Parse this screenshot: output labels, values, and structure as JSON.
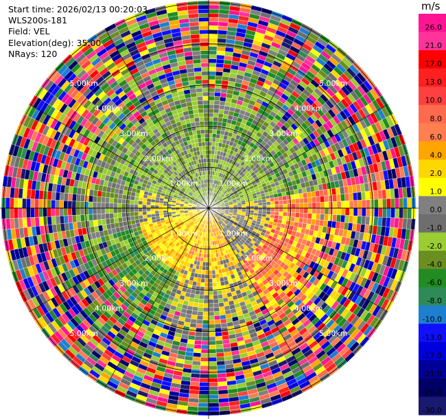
{
  "header": {
    "start_time": "Start time: 2026/02/13 00:20:03",
    "instrument": "WLS200s-181",
    "field": "Field: VEL",
    "elevation": "Elevation(deg): 35.00",
    "nrays": "NRays: 120"
  },
  "chart_data": {
    "type": "heatmap",
    "projection": "polar-ppi",
    "field": "VEL",
    "units": "m/s",
    "nrays": 120,
    "range_rings_km": [
      1.0,
      2.0,
      3.0,
      4.0,
      5.0
    ],
    "ring_labels": [
      "1.00km",
      "2.00km",
      "3.00km",
      "4.00km",
      "5.00km"
    ],
    "colorbar": {
      "unit_label": "m/s",
      "tick_labels": [
        "26.0",
        "21.0",
        "17.0",
        "13.0",
        "10.0",
        "8.0",
        "6.0",
        "4.0",
        "2.0",
        "1.0",
        "0.0",
        "-1.0",
        "-2.0",
        "-4.0",
        "-6.0",
        "-8.0",
        "-10.0",
        "-13.0",
        "-17.0",
        "-21.0",
        "-26.0",
        "-30.0"
      ],
      "colors": [
        "#ff1493",
        "#ff3399",
        "#ff0000",
        "#ff2020",
        "#ff4040",
        "#ff6a4f",
        "#ff7f50",
        "#ffa500",
        "#ffd700",
        "#ffff00",
        "#808080",
        "#6e6e6e",
        "#9acd32",
        "#6b8e23",
        "#228b22",
        "#2e8b57",
        "#1e7fd0",
        "#1010ff",
        "#0000dd",
        "#000099",
        "#000066",
        "#191970"
      ]
    },
    "inner_field_summary": {
      "north_near": "1 to -4 (greens/grey)",
      "south_near": "2 to 6 (yellows/orange)",
      "southwest_far": "-4 to -6 (greens)",
      "east_far": "6 to 13 (salmon/orange)",
      "outer_ranges": "noise, all classes"
    }
  }
}
